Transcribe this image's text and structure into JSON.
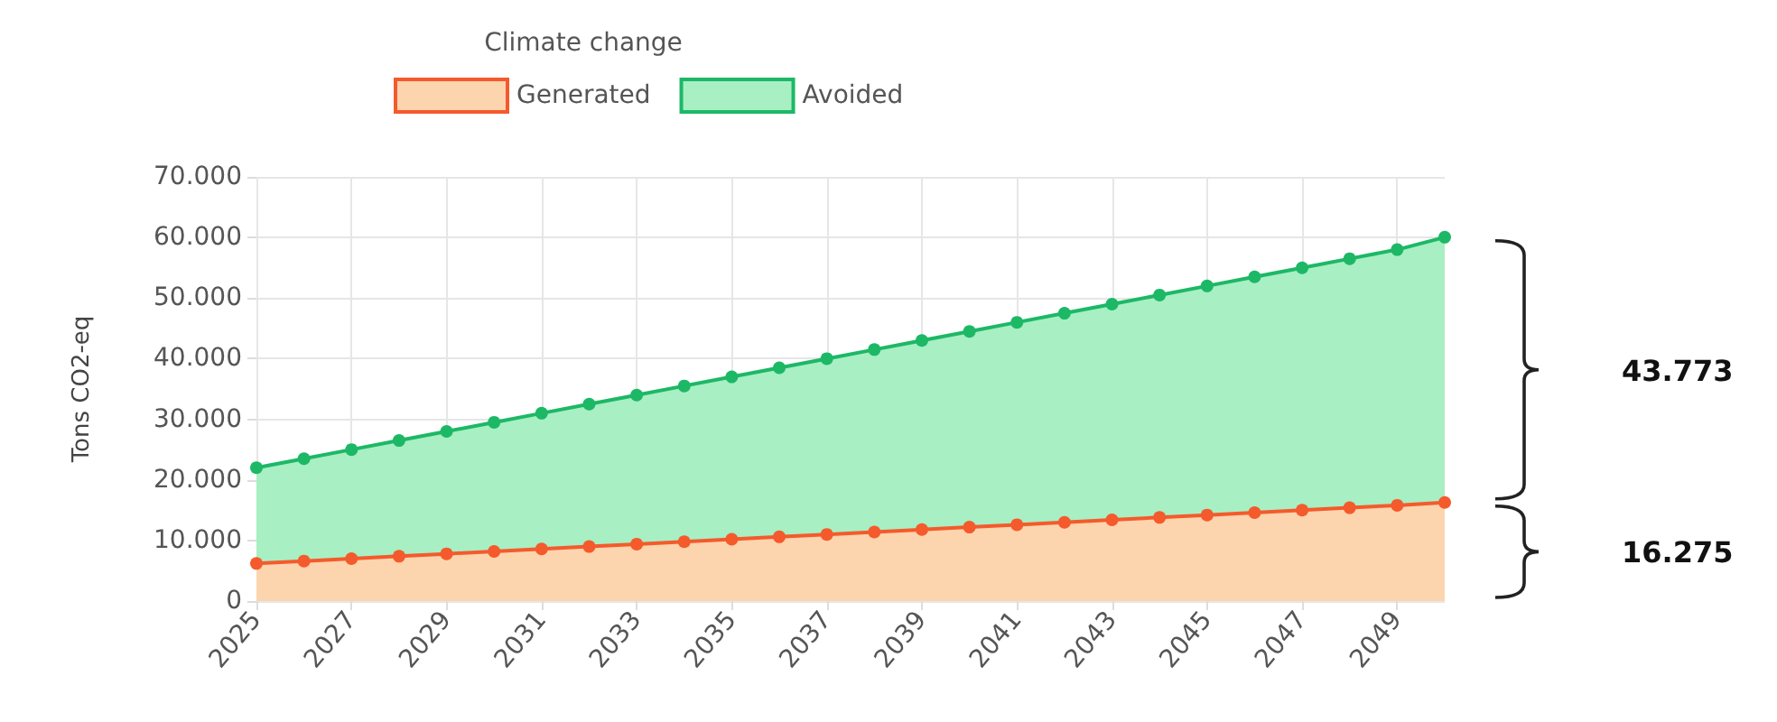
{
  "chart_data": {
    "type": "area",
    "title": "Climate change",
    "ylabel": "Tons CO2-eq",
    "stacked": true,
    "grid": true,
    "legend": "top",
    "marker": "circle",
    "line_style": "solid",
    "categories": [
      "2025",
      null,
      "2027",
      null,
      "2029",
      null,
      "2031",
      null,
      "2033",
      null,
      "2035",
      null,
      "2037",
      null,
      "2039",
      null,
      "2041",
      null,
      "2043",
      null,
      "2045",
      null,
      "2047",
      null,
      "2049",
      null
    ],
    "ylim": [
      0,
      70000
    ],
    "yticks": [
      {
        "value": 0,
        "label": "0"
      },
      {
        "value": 10000,
        "label": "10.000"
      },
      {
        "value": 20000,
        "label": "20.000"
      },
      {
        "value": 30000,
        "label": "30.000"
      },
      {
        "value": 40000,
        "label": "40.000"
      },
      {
        "value": 50000,
        "label": "50.000"
      },
      {
        "value": 60000,
        "label": "60.000"
      },
      {
        "value": 70000,
        "label": "70.000"
      }
    ],
    "series": [
      {
        "name": "Generated",
        "color": "#f55a2c",
        "values": [
          6200,
          6600,
          7000,
          7400,
          7800,
          8200,
          8600,
          9000,
          9400,
          9800,
          10200,
          10600,
          11000,
          11400,
          11800,
          12200,
          12600,
          13000,
          13400,
          13800,
          14200,
          14600,
          15000,
          15400,
          15800,
          16275
        ]
      },
      {
        "name": "Avoided",
        "color": "#1db866",
        "values": [
          15800,
          16900,
          18000,
          19100,
          20200,
          21300,
          22400,
          23500,
          24600,
          25700,
          26800,
          27900,
          29000,
          30100,
          31200,
          32300,
          33400,
          34500,
          35600,
          36700,
          37800,
          38900,
          40000,
          41100,
          42200,
          43773
        ]
      }
    ],
    "annotations": [
      "43.773",
      "16.275"
    ]
  }
}
